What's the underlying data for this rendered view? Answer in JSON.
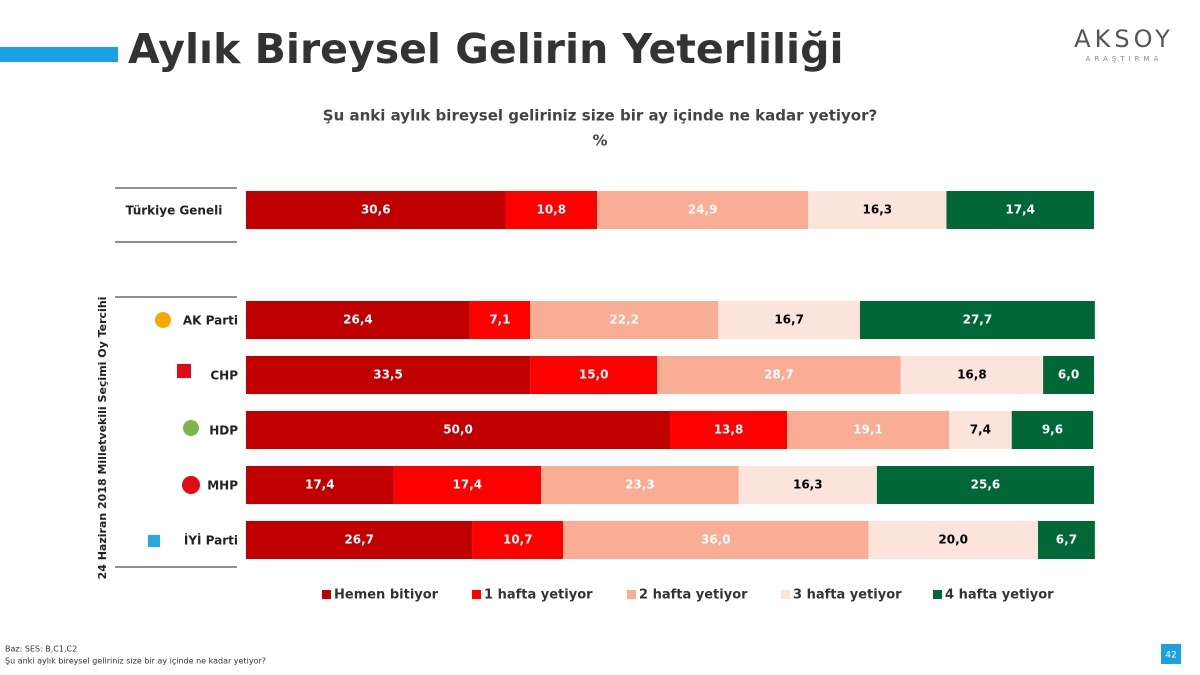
{
  "header": {
    "title": "Aylık Bireysel Gelirin Yeterliliği",
    "logo": "AKSOY",
    "logo_sub": "ARAŞTIRMA"
  },
  "chart_data": {
    "type": "stacked-bar-horizontal",
    "title": "Şu anki aylık bireysel geliriniz size bir ay içinde ne kadar yetiyor?",
    "subtitle": "%",
    "group_label": "24 Haziran 2018 Milletvekili Seçimi Oy Tercihi",
    "categories": [
      "Türkiye Geneli",
      "AK Parti",
      "CHP",
      "HDP",
      "MHP",
      "İYİ Parti"
    ],
    "xlim": [
      0,
      100
    ],
    "series": [
      {
        "name": "Hemen bitiyor",
        "color": "#c00000",
        "label_color": "#ffffff",
        "values": [
          30.6,
          26.4,
          33.5,
          50.0,
          17.4,
          26.7
        ],
        "value_labels": [
          "30,6",
          "26,4",
          "33,5",
          "50,0",
          "17,4",
          "26,7"
        ]
      },
      {
        "name": "1 hafta yetiyor",
        "color": "#ff0000",
        "label_color": "#ffffff",
        "values": [
          10.8,
          7.1,
          15.0,
          13.8,
          17.4,
          10.7
        ],
        "value_labels": [
          "10,8",
          "7,1",
          "15,0",
          "13,8",
          "17,4",
          "10,7"
        ]
      },
      {
        "name": "2 hafta yetiyor",
        "color": "#f8ad94",
        "label_color": "#ffffff",
        "values": [
          24.9,
          22.2,
          28.7,
          19.1,
          23.3,
          36.0
        ],
        "value_labels": [
          "24,9",
          "22,2",
          "28,7",
          "19,1",
          "23,3",
          "36,0"
        ]
      },
      {
        "name": "3 hafta yetiyor",
        "color": "#fce4dc",
        "label_color": "#000000",
        "values": [
          16.3,
          16.7,
          16.8,
          7.4,
          16.3,
          20.0
        ],
        "value_labels": [
          "16,3",
          "16,7",
          "16,8",
          "7,4",
          "16,3",
          "20,0"
        ]
      },
      {
        "name": "4 hafta yetiyor",
        "color": "#006837",
        "label_color": "#ffffff",
        "values": [
          17.4,
          27.7,
          6.0,
          9.6,
          25.6,
          6.7
        ],
        "value_labels": [
          "17,4",
          "27,7",
          "6,0",
          "9,6",
          "25,6",
          "6,7"
        ]
      }
    ]
  },
  "footer": {
    "base": "Baz: SES: B,C1,C2",
    "question": "Şu anki aylık bireysel geliriniz size bir ay içinde ne kadar yetiyor?",
    "page": "42"
  }
}
